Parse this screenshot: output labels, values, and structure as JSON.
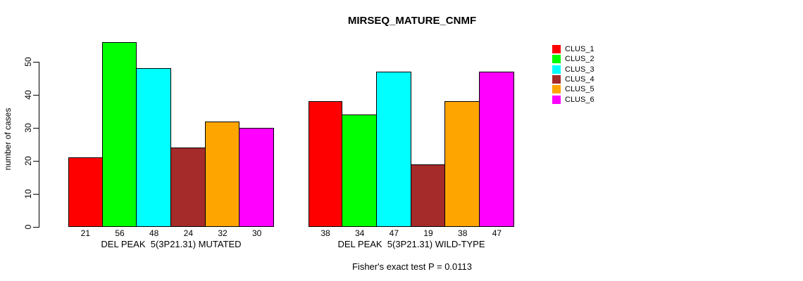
{
  "chart_data": {
    "type": "bar",
    "title": "MIRSEQ_MATURE_CNMF",
    "ylabel": "number of cases",
    "xlabel": "",
    "ylim": [
      0,
      56
    ],
    "yticks": [
      0,
      10,
      20,
      30,
      40,
      50
    ],
    "grid": false,
    "legend_position": "right",
    "categories": [
      "DEL PEAK  5(3P21.31) MUTATED",
      "DEL PEAK  5(3P21.31) WILD-TYPE"
    ],
    "series": [
      {
        "name": "CLUS_1",
        "color": "#ff0000",
        "values": [
          21,
          38
        ]
      },
      {
        "name": "CLUS_2",
        "color": "#00ff00",
        "values": [
          56,
          34
        ]
      },
      {
        "name": "CLUS_3",
        "color": "#00ffff",
        "values": [
          48,
          47
        ]
      },
      {
        "name": "CLUS_4",
        "color": "#a52a2a",
        "values": [
          24,
          19
        ]
      },
      {
        "name": "CLUS_5",
        "color": "#ffa500",
        "values": [
          32,
          38
        ]
      },
      {
        "name": "CLUS_6",
        "color": "#ff00ff",
        "values": [
          30,
          47
        ]
      }
    ],
    "bar_value_labels": [
      [
        21,
        56,
        48,
        24,
        32,
        30
      ],
      [
        38,
        34,
        47,
        19,
        38,
        47
      ]
    ],
    "annotation": "Fisher's exact test P = 0.0113"
  }
}
